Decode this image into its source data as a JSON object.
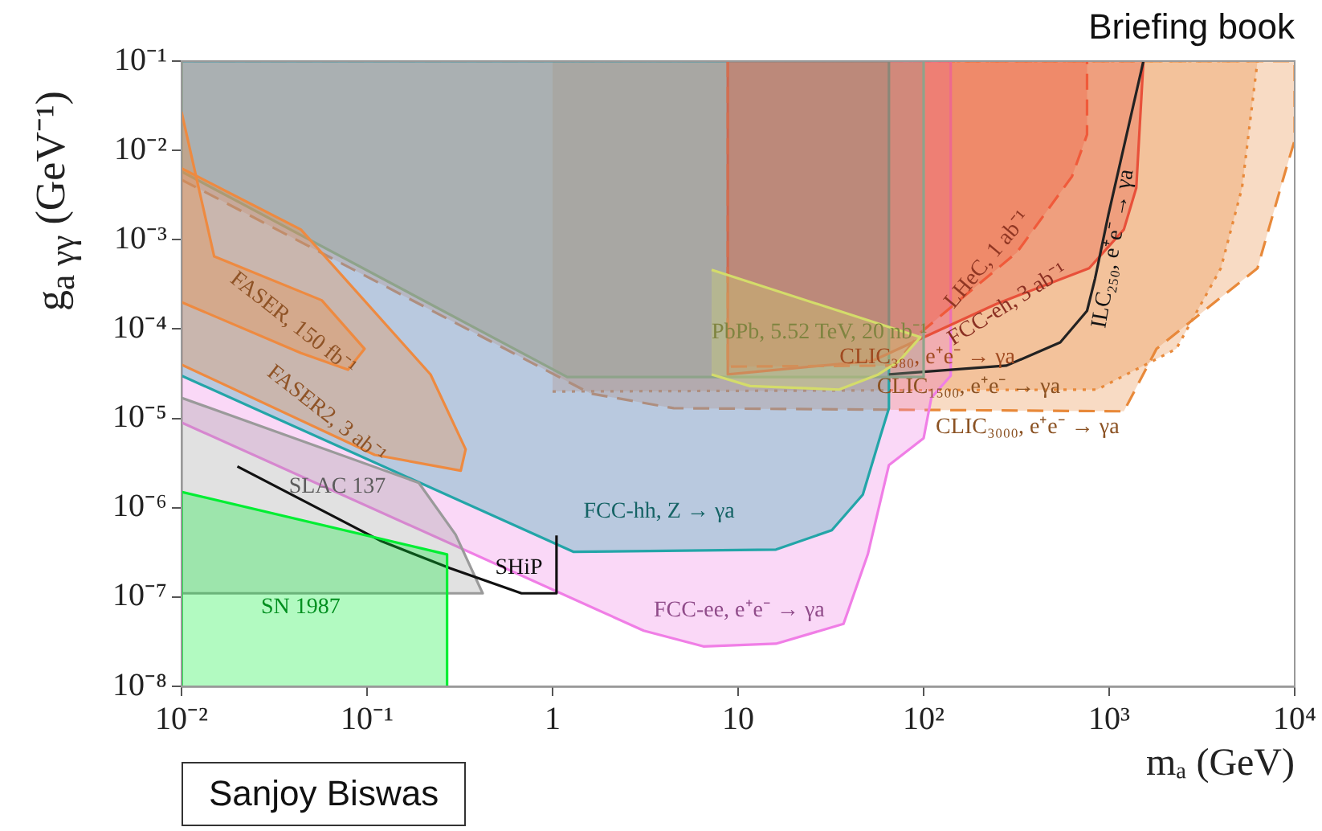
{
  "chart_data": {
    "type": "area",
    "log": "xy",
    "xlabel": "mₐ (GeV)",
    "ylabel": "g$_{a γγ}$ (GeV⁻¹)",
    "xlim": [
      0.01,
      10000
    ],
    "ylim": [
      1e-08,
      0.1
    ],
    "xticks": [
      {
        "value": 0.01,
        "label": "10⁻²"
      },
      {
        "value": 0.1,
        "label": "10⁻¹"
      },
      1,
      10,
      {
        "value": 100,
        "label": "10²"
      },
      {
        "value": 1000,
        "label": "10³"
      },
      {
        "value": 10000,
        "label": "10⁴"
      }
    ],
    "yticks": [
      {
        "value": 1e-08,
        "label": "10⁻⁸"
      },
      {
        "value": 1e-07,
        "label": "10⁻⁷"
      },
      {
        "value": 1e-06,
        "label": "10⁻⁶"
      },
      {
        "value": 1e-05,
        "label": "10⁻⁵"
      },
      {
        "value": 0.0001,
        "label": "10⁻⁴"
      },
      {
        "value": 0.001,
        "label": "10⁻³"
      },
      {
        "value": 0.01,
        "label": "10⁻²"
      },
      {
        "value": 0.1,
        "label": "10⁻¹"
      }
    ],
    "series": [
      {
        "type": "area",
        "name": "CLIC₃₀₀₀, e⁺e⁻ → γa",
        "color": "#e8893a",
        "line_style": "dashed",
        "x": [
          0.01,
          1.6,
          4.5,
          1200,
          1800,
          6300,
          8900,
          10000,
          10000,
          0.01
        ],
        "values": [
          0.0047,
          1.9e-05,
          1.3e-05,
          1.2e-05,
          6e-05,
          0.00048,
          0.0058,
          0.013,
          0.1,
          0.1
        ]
      },
      {
        "type": "area",
        "name": "CLIC₁₅₀₀, e⁺e⁻ → γa",
        "color": "#e8893a",
        "line_style": "dotted",
        "x": [
          1,
          860,
          2300,
          4000,
          5200,
          6300,
          1
        ],
        "values": [
          2e-05,
          2.1e-05,
          6e-05,
          0.00048,
          0.0038,
          0.1,
          0.1
        ]
      },
      {
        "type": "area",
        "name": "FCC-ee, e⁺e⁻ → γa",
        "color": "#f07ee6",
        "x": [
          0.01,
          3.1,
          6.5,
          16,
          37,
          50,
          65,
          100,
          110,
          140,
          140,
          0.01
        ],
        "values": [
          9e-06,
          4.2e-08,
          2.8e-08,
          3e-08,
          5e-08,
          3e-07,
          3e-06,
          6e-06,
          1.7e-05,
          3e-05,
          0.1,
          0.1
        ]
      },
      {
        "type": "area",
        "name": "FCC-hh, Z → γa",
        "color": "#23a5a8",
        "x": [
          0.01,
          1.3,
          16,
          32,
          47,
          58,
          65,
          65,
          0.01
        ],
        "values": [
          3e-05,
          3.2e-07,
          3.4e-07,
          5.6e-07,
          1.4e-06,
          6e-06,
          1.3e-05,
          0.1,
          0.1
        ]
      },
      {
        "type": "area",
        "name": "FCC-eh, 3 ab⁻¹",
        "color": "#e8503a",
        "x": [
          8.8,
          8.8,
          53,
          245,
          780,
          1200,
          1400,
          1530
        ],
        "values": [
          0.1,
          3.1e-05,
          4.4e-05,
          0.00019,
          0.00048,
          0.0013,
          0.0038,
          0.1
        ]
      },
      {
        "type": "area",
        "name": "LHeC, 1 ab⁻¹",
        "color": "#f05a3a",
        "line_style": "dashed",
        "x": [
          8.8,
          8.8,
          70,
          96,
          318,
          630,
          760,
          760
        ],
        "values": [
          0.1,
          3.8e-05,
          3.9e-05,
          9.1e-05,
          0.00072,
          0.0051,
          0.015,
          0.1
        ]
      },
      {
        "type": "line",
        "name": "ILC₂₅₀, e⁺e⁻ → γa",
        "color": "#222222",
        "x": [
          65,
          280,
          545,
          760,
          840,
          990,
          1530
        ],
        "values": [
          3.1e-05,
          3.9e-05,
          7.1e-05,
          0.00016,
          0.00037,
          0.0019,
          0.1
        ]
      },
      {
        "type": "area",
        "color": "#8ea38a",
        "x": [
          0.01,
          0.01,
          1.2,
          100,
          100
        ],
        "values": [
          0.1,
          0.0058,
          2.9e-05,
          2.9e-05,
          0.1
        ]
      },
      {
        "type": "area",
        "name": "PbPb, 5.52 TeV, 20 nb⁻¹",
        "color": "#d4dc6a",
        "x": [
          7.2,
          96,
          74,
          57,
          35,
          11.6,
          7.2
        ],
        "values": [
          0.00046,
          8.1e-05,
          4.4e-05,
          3.1e-05,
          2.1e-05,
          2.3e-05,
          3.1e-05
        ]
      },
      {
        "type": "area",
        "name": "FASER2, 3 ab⁻¹",
        "color": "#ee8a40",
        "x": [
          0.01,
          0.11,
          0.32,
          0.34,
          0.22,
          0.044,
          0.01
        ],
        "values": [
          4e-05,
          3.9e-06,
          2.6e-06,
          4.5e-06,
          3.1e-05,
          0.0013,
          0.0063
        ]
      },
      {
        "type": "area",
        "name": "FASER, 150 fb⁻¹",
        "color": "#ee8a40",
        "x": [
          0.01,
          0.015,
          0.057,
          0.097,
          0.079,
          0.044,
          0.01
        ],
        "values": [
          0.027,
          0.00065,
          0.00021,
          6e-05,
          3.5e-05,
          5.4e-05,
          0.0002
        ]
      },
      {
        "type": "area",
        "name": "SLAC 137",
        "color": "#9a9a9a",
        "x": [
          0.01,
          0.19,
          0.3,
          0.42,
          0.27,
          0.01
        ],
        "values": [
          1.7e-05,
          1.9e-06,
          5e-07,
          1.1e-07,
          1.1e-07,
          1.1e-07
        ]
      },
      {
        "type": "line",
        "name": "SHiP",
        "color": "#111111",
        "x": [
          0.02,
          0.12,
          0.28,
          0.68,
          1.05,
          1.05
        ],
        "values": [
          2.9e-06,
          4.2e-07,
          2.1e-07,
          1.1e-07,
          1.1e-07,
          4.9e-07
        ]
      },
      {
        "type": "area",
        "name": "SN 1987",
        "color": "#00ee33",
        "x": [
          0.01,
          0.01,
          0.27,
          0.27
        ],
        "values": [
          1e-08,
          1.5e-06,
          3e-07,
          1e-08
        ]
      }
    ],
    "annotations": [
      "Briefing book",
      "Sanjoy Biswas",
      "CLIC₃₈₀, e⁺e⁻ → γa"
    ]
  }
}
